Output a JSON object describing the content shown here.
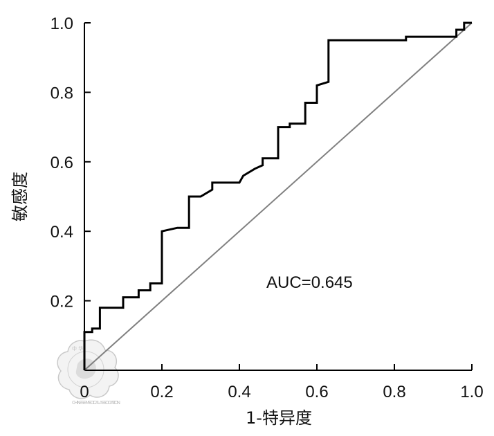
{
  "chart_data": {
    "type": "line",
    "title": "",
    "xlabel": "1-特异度",
    "ylabel": "敏感度",
    "xlim": [
      0,
      1
    ],
    "ylim": [
      0,
      1
    ],
    "xticks": [
      "0",
      "0.2",
      "0.4",
      "0.6",
      "0.8",
      "1.0"
    ],
    "yticks": [
      "0.2",
      "0.4",
      "0.6",
      "0.8",
      "1.0"
    ],
    "grid": false,
    "annotation": "AUC=0.645",
    "series": [
      {
        "role": "roc-curve",
        "x": [
          0.0,
          0.0,
          0.0,
          0.02,
          0.02,
          0.04,
          0.04,
          0.1,
          0.1,
          0.14,
          0.14,
          0.17,
          0.17,
          0.2,
          0.2,
          0.24,
          0.27,
          0.27,
          0.3,
          0.33,
          0.33,
          0.4,
          0.41,
          0.44,
          0.46,
          0.46,
          0.5,
          0.5,
          0.53,
          0.53,
          0.57,
          0.57,
          0.6,
          0.6,
          0.63,
          0.63,
          0.83,
          0.83,
          0.96,
          0.96,
          0.98,
          0.98,
          1.0
        ],
        "y": [
          0.0,
          0.05,
          0.11,
          0.11,
          0.12,
          0.12,
          0.18,
          0.18,
          0.21,
          0.21,
          0.23,
          0.23,
          0.25,
          0.25,
          0.4,
          0.41,
          0.41,
          0.5,
          0.5,
          0.52,
          0.54,
          0.54,
          0.56,
          0.58,
          0.59,
          0.61,
          0.61,
          0.7,
          0.7,
          0.71,
          0.71,
          0.77,
          0.77,
          0.82,
          0.83,
          0.95,
          0.95,
          0.96,
          0.96,
          0.98,
          0.98,
          1.0,
          1.0
        ],
        "color": "#000000"
      },
      {
        "role": "reference-diagonal",
        "x": [
          0,
          1
        ],
        "y": [
          0,
          1
        ],
        "color": "#808080"
      }
    ]
  },
  "watermark": {
    "text_top": "中 华",
    "text_arc": "CHINESE MEDICAL ASSOCIATION",
    "color": "#bdbdbd"
  }
}
